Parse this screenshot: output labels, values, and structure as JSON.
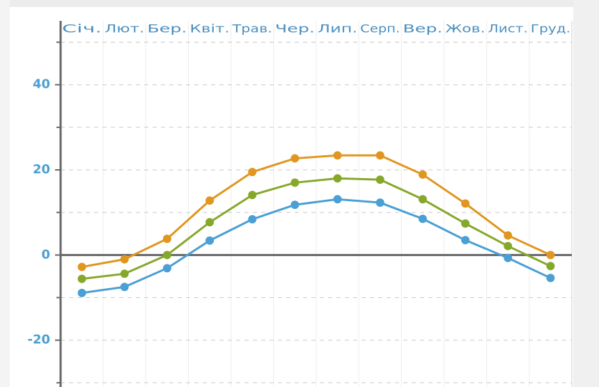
{
  "chart_data": {
    "type": "line",
    "categories": [
      "Січ.",
      "Лют.",
      "Бер.",
      "Квіт.",
      "Трав.",
      "Чер.",
      "Лип.",
      "Серп.",
      "Вер.",
      "Жов.",
      "Лист.",
      "Груд."
    ],
    "series": [
      {
        "color": "#e0961f",
        "values": [
          -2.8,
          -1,
          3.8,
          12.8,
          19.5,
          22.7,
          23.4,
          23.4,
          18.9,
          12.1,
          4.6,
          0
        ]
      },
      {
        "color": "#86a82a",
        "values": [
          -5.6,
          -4.4,
          0,
          7.7,
          14.1,
          17,
          18,
          17.7,
          13.1,
          7.4,
          2.1,
          -2.6
        ]
      },
      {
        "color": "#4a9fd4",
        "values": [
          -8.9,
          -7.5,
          -3.1,
          3.4,
          8.4,
          11.8,
          13.1,
          12.3,
          8.5,
          3.5,
          -0.7,
          -5.4
        ]
      }
    ],
    "ylim": [
      -31,
      55
    ],
    "yticks": [
      -20,
      0,
      20,
      40
    ],
    "minor_yticks": [
      -30,
      -10,
      10,
      30,
      50
    ],
    "grid": true
  }
}
